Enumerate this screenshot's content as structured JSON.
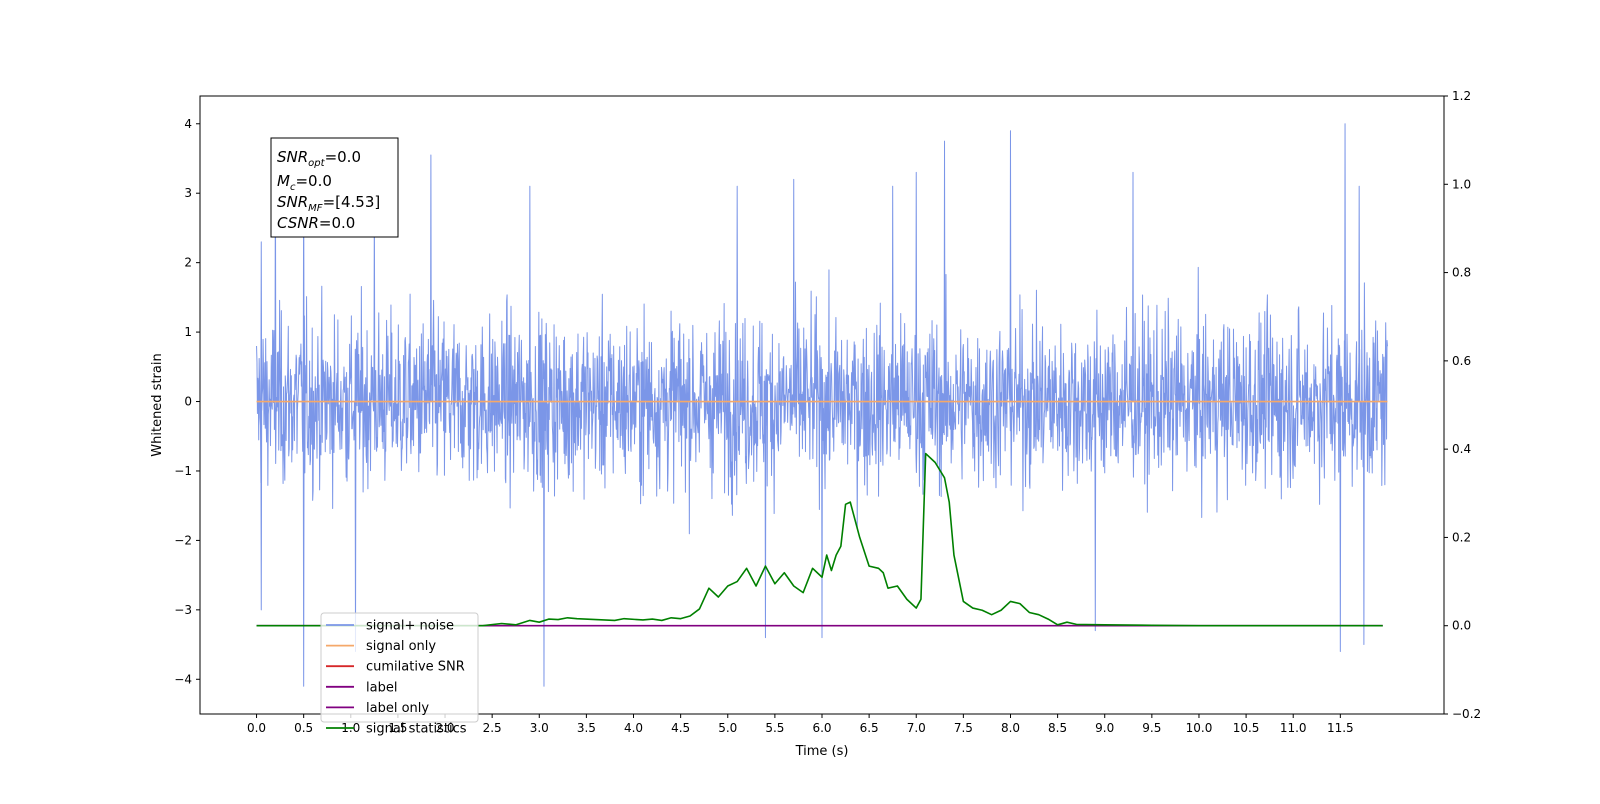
{
  "chart_data": {
    "type": "line",
    "xlabel": "Time (s)",
    "ylabel": "Whitened strain",
    "xlim": [
      -0.6,
      12.6
    ],
    "ylim": [
      -4.5,
      4.4
    ],
    "y2lim": [
      -0.2,
      1.2
    ],
    "x_ticks": [
      "0.0",
      "0.5",
      "1.0",
      "1.5",
      "2.0",
      "2.5",
      "3.0",
      "3.5",
      "4.0",
      "4.5",
      "5.0",
      "5.5",
      "6.0",
      "6.5",
      "7.0",
      "7.5",
      "8.0",
      "8.5",
      "9.0",
      "9.5",
      "10.0",
      "10.5",
      "11.0",
      "11.5"
    ],
    "y_ticks": [
      "4",
      "3",
      "2",
      "1",
      "0",
      "−1",
      "−2",
      "−3",
      "−4"
    ],
    "y2_ticks": [
      "1.2",
      "1.0",
      "0.8",
      "0.6",
      "0.4",
      "0.2",
      "0.0",
      "−0.2"
    ],
    "legend_placement": "lower-left",
    "grid": false,
    "annotation": {
      "snr_opt": {
        "sym": "SNR",
        "sub": "opt",
        "val": "=0.0"
      },
      "mc": {
        "sym": "M",
        "sub": "c",
        "val": "=0.0"
      },
      "snr_mf": {
        "sym": "SNR",
        "sub": "MF",
        "val": "=[4.53]"
      },
      "csnr": {
        "sym": "CSNR",
        "sub": "",
        "val": "=0.0"
      }
    },
    "series": [
      {
        "name": "signal+ noise",
        "color": "#7b96e8",
        "axis": "left",
        "x_range": [
          0.0,
          12.0
        ],
        "envelope_typical": [
          -2.0,
          2.0
        ],
        "peaks": [
          [
            0.05,
            2.3
          ],
          [
            0.2,
            3.55
          ],
          [
            0.5,
            3.4
          ],
          [
            1.25,
            3.0
          ],
          [
            1.85,
            3.55
          ],
          [
            2.9,
            3.1
          ],
          [
            5.1,
            3.1
          ],
          [
            5.7,
            3.2
          ],
          [
            6.75,
            3.1
          ],
          [
            7.0,
            3.3
          ],
          [
            7.3,
            3.75
          ],
          [
            8.0,
            3.9
          ],
          [
            9.3,
            3.3
          ],
          [
            11.55,
            4.0
          ],
          [
            11.7,
            3.1
          ]
        ],
        "troughs": [
          [
            0.05,
            -3.0
          ],
          [
            0.5,
            -4.1
          ],
          [
            1.05,
            -3.6
          ],
          [
            3.05,
            -4.1
          ],
          [
            5.4,
            -3.4
          ],
          [
            6.0,
            -3.4
          ],
          [
            8.9,
            -3.3
          ],
          [
            11.5,
            -3.6
          ],
          [
            11.75,
            -3.5
          ]
        ]
      },
      {
        "name": "signal only",
        "color": "#f5a86a",
        "axis": "left",
        "x": [
          0.0,
          12.0
        ],
        "values": [
          0.0,
          0.0
        ]
      },
      {
        "name": "cumilative SNR",
        "color": "#d62728",
        "axis": "right",
        "x": [],
        "values": []
      },
      {
        "name": "label",
        "color": "#800080",
        "axis": "right",
        "x": [
          0.0,
          11.95
        ],
        "values": [
          0.0,
          0.0
        ]
      },
      {
        "name": "label only",
        "color": "#800080",
        "axis": "right",
        "x": [],
        "values": []
      },
      {
        "name": "signal statistics",
        "color": "#008000",
        "axis": "right",
        "x": [
          0.0,
          0.5,
          1.0,
          1.5,
          2.0,
          2.4,
          2.6,
          2.75,
          2.9,
          3.0,
          3.1,
          3.2,
          3.3,
          3.4,
          3.6,
          3.8,
          3.9,
          4.1,
          4.2,
          4.3,
          4.4,
          4.5,
          4.6,
          4.7,
          4.8,
          4.9,
          5.0,
          5.1,
          5.2,
          5.3,
          5.4,
          5.5,
          5.6,
          5.7,
          5.8,
          5.9,
          5.95,
          6.0,
          6.05,
          6.1,
          6.15,
          6.2,
          6.25,
          6.3,
          6.4,
          6.5,
          6.6,
          6.65,
          6.7,
          6.8,
          6.9,
          7.0,
          7.05,
          7.1,
          7.2,
          7.3,
          7.35,
          7.4,
          7.5,
          7.6,
          7.7,
          7.8,
          7.9,
          8.0,
          8.1,
          8.2,
          8.3,
          8.4,
          8.5,
          8.6,
          8.7,
          9.0,
          9.5,
          10.0,
          11.0,
          11.95
        ],
        "values": [
          0.0,
          0.0,
          0.0,
          0.0,
          0.0,
          0.0,
          0.005,
          0.002,
          0.012,
          0.008,
          0.015,
          0.014,
          0.018,
          0.016,
          0.014,
          0.012,
          0.016,
          0.013,
          0.015,
          0.012,
          0.018,
          0.016,
          0.022,
          0.038,
          0.085,
          0.065,
          0.09,
          0.1,
          0.13,
          0.09,
          0.135,
          0.095,
          0.12,
          0.09,
          0.075,
          0.13,
          0.12,
          0.11,
          0.16,
          0.125,
          0.16,
          0.18,
          0.275,
          0.28,
          0.2,
          0.135,
          0.13,
          0.12,
          0.085,
          0.09,
          0.06,
          0.04,
          0.06,
          0.39,
          0.37,
          0.335,
          0.28,
          0.16,
          0.055,
          0.04,
          0.035,
          0.025,
          0.035,
          0.055,
          0.05,
          0.03,
          0.025,
          0.015,
          0.002,
          0.008,
          0.003,
          0.002,
          0.001,
          0.0,
          0.0,
          0.0
        ]
      }
    ]
  }
}
